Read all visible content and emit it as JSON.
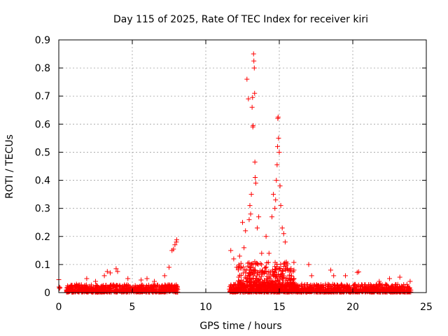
{
  "chart_data": {
    "type": "scatter",
    "title": "Day 115 of 2025, Rate Of TEC Index for receiver kiri",
    "xlabel": "GPS time / hours",
    "ylabel": "ROTI / TECUs",
    "xlim": [
      0,
      25
    ],
    "ylim": [
      0,
      0.9
    ],
    "xticks": [
      0,
      5,
      10,
      15,
      20,
      25
    ],
    "xtick_labels": [
      "0",
      "5",
      "10",
      "15",
      "20",
      "25"
    ],
    "yticks": [
      0,
      0.1,
      0.2,
      0.3,
      0.4,
      0.5,
      0.6,
      0.7,
      0.8,
      0.9
    ],
    "ytick_labels": [
      "0",
      "0.1",
      "0.2",
      "0.3",
      "0.4",
      "0.5",
      "0.6",
      "0.7",
      "0.8",
      "0.9"
    ],
    "grid": true,
    "marker": "+",
    "marker_color": "#ff0000",
    "series": [
      {
        "name": "ROTI",
        "points": [
          [
            0.0,
            0.046
          ],
          [
            0.02,
            0.02
          ],
          [
            0.05,
            0.015
          ],
          [
            0.08,
            0.018
          ],
          [
            1.2,
            0.03
          ],
          [
            1.9,
            0.05
          ],
          [
            2.5,
            0.04
          ],
          [
            3.1,
            0.06
          ],
          [
            3.3,
            0.075
          ],
          [
            3.5,
            0.07
          ],
          [
            3.9,
            0.085
          ],
          [
            4.0,
            0.075
          ],
          [
            4.7,
            0.05
          ],
          [
            5.6,
            0.045
          ],
          [
            6.0,
            0.05
          ],
          [
            6.5,
            0.04
          ],
          [
            7.2,
            0.06
          ],
          [
            7.5,
            0.09
          ],
          [
            7.7,
            0.15
          ],
          [
            7.8,
            0.155
          ],
          [
            7.9,
            0.17
          ],
          [
            8.0,
            0.18
          ],
          [
            8.02,
            0.188
          ],
          [
            11.7,
            0.15
          ],
          [
            11.9,
            0.12
          ],
          [
            12.1,
            0.09
          ],
          [
            12.3,
            0.13
          ],
          [
            12.5,
            0.25
          ],
          [
            12.6,
            0.16
          ],
          [
            12.7,
            0.22
          ],
          [
            12.8,
            0.76
          ],
          [
            12.9,
            0.69
          ],
          [
            12.95,
            0.26
          ],
          [
            13.0,
            0.31
          ],
          [
            13.05,
            0.28
          ],
          [
            13.1,
            0.35
          ],
          [
            13.15,
            0.66
          ],
          [
            13.18,
            0.695
          ],
          [
            13.2,
            0.59
          ],
          [
            13.22,
            0.595
          ],
          [
            13.25,
            0.85
          ],
          [
            13.27,
            0.825
          ],
          [
            13.3,
            0.8
          ],
          [
            13.32,
            0.71
          ],
          [
            13.34,
            0.465
          ],
          [
            13.36,
            0.41
          ],
          [
            13.4,
            0.39
          ],
          [
            13.5,
            0.23
          ],
          [
            13.6,
            0.27
          ],
          [
            13.8,
            0.14
          ],
          [
            14.1,
            0.2
          ],
          [
            14.3,
            0.14
          ],
          [
            14.5,
            0.27
          ],
          [
            14.6,
            0.35
          ],
          [
            14.7,
            0.3
          ],
          [
            14.75,
            0.33
          ],
          [
            14.8,
            0.4
          ],
          [
            14.85,
            0.455
          ],
          [
            14.88,
            0.52
          ],
          [
            14.9,
            0.62
          ],
          [
            14.92,
            0.625
          ],
          [
            14.95,
            0.55
          ],
          [
            15.0,
            0.5
          ],
          [
            15.05,
            0.38
          ],
          [
            15.1,
            0.31
          ],
          [
            15.2,
            0.23
          ],
          [
            15.3,
            0.21
          ],
          [
            15.4,
            0.18
          ],
          [
            16.0,
            0.05
          ],
          [
            17.0,
            0.1
          ],
          [
            17.2,
            0.06
          ],
          [
            18.5,
            0.08
          ],
          [
            18.7,
            0.06
          ],
          [
            19.5,
            0.06
          ],
          [
            20.3,
            0.072
          ],
          [
            20.4,
            0.074
          ],
          [
            21.8,
            0.04
          ],
          [
            22.5,
            0.05
          ],
          [
            23.2,
            0.055
          ],
          [
            23.9,
            0.04
          ]
        ],
        "baseline_bands": [
          {
            "x": [
              0.5,
              8.1
            ],
            "y": [
              0.002,
              0.028
            ]
          },
          {
            "x": [
              11.6,
              24.0
            ],
            "y": [
              0.002,
              0.03
            ]
          },
          {
            "x": [
              12.2,
              16.0
            ],
            "y": [
              0.02,
              0.11
            ]
          }
        ]
      }
    ]
  }
}
